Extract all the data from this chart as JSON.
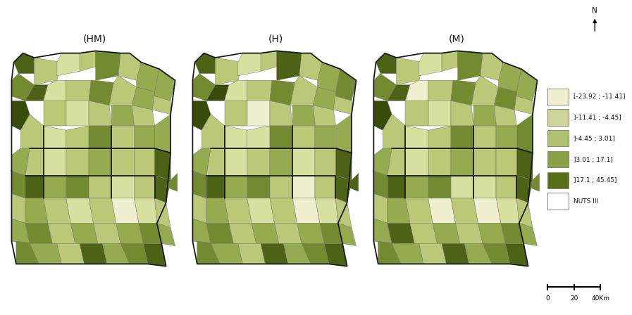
{
  "title_hm": "(HM)",
  "title_h": "(H)",
  "title_m": "(M)",
  "legend_labels": [
    "[-23.92 ; -11.41]",
    "]-11.41 ; -4.45]",
    "]-4.45 ; 3.01]",
    "]3.01 ; 17.1]",
    "]17.1 ; 45.45]",
    "NUTS III"
  ],
  "legend_colors": [
    "#f0f0d0",
    "#cdd49a",
    "#afc070",
    "#8a9e45",
    "#5a6e1a",
    "#ffffff"
  ],
  "bg_color": "#ffffff",
  "fig_width": 8.71,
  "fig_height": 4.57,
  "dpi": 100
}
